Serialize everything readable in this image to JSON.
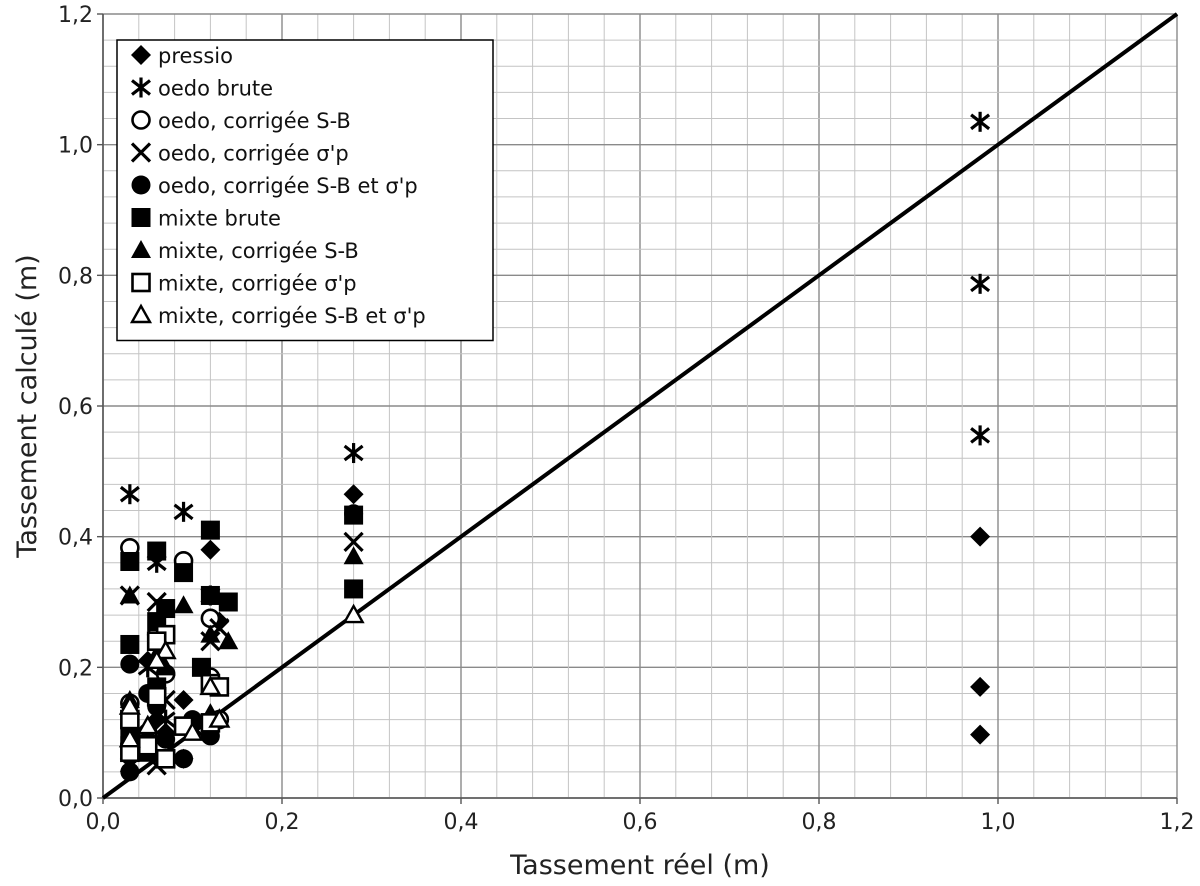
{
  "chart_data": {
    "type": "scatter",
    "xlabel": "Tassement réel  (m)",
    "ylabel": "Tassement calculé (m)",
    "xlim": [
      0,
      1.2
    ],
    "ylim": [
      0,
      1.2
    ],
    "x_ticks": [
      "0,0",
      "0,2",
      "0,4",
      "0,6",
      "0,8",
      "1,0",
      "1,2"
    ],
    "y_ticks": [
      "0,0",
      "0,2",
      "0,4",
      "0,6",
      "0,8",
      "1,0",
      "1,2"
    ],
    "grid": true,
    "minor_grid_step": 0.04,
    "major_grid_step": 0.2,
    "legend_position": "top-left",
    "reference_line": {
      "x": [
        0,
        1.2
      ],
      "y": [
        0,
        1.2
      ]
    },
    "series": [
      {
        "name": "pressio",
        "marker": "diamond",
        "points": [
          [
            0.98,
            0.4
          ],
          [
            0.98,
            0.17
          ],
          [
            0.98,
            0.097
          ],
          [
            0.28,
            0.465
          ],
          [
            0.12,
            0.38
          ],
          [
            0.09,
            0.15
          ],
          [
            0.13,
            0.27
          ],
          [
            0.06,
            0.12
          ],
          [
            0.04,
            0.08
          ],
          [
            0.05,
            0.21
          ],
          [
            0.03,
            0.06
          ],
          [
            0.09,
            0.06
          ],
          [
            0.07,
            0.1
          ],
          [
            0.12,
            0.11
          ]
        ]
      },
      {
        "name": "oedo brute",
        "marker": "asterisk",
        "points": [
          [
            0.98,
            1.035
          ],
          [
            0.98,
            0.787
          ],
          [
            0.98,
            0.555
          ],
          [
            0.28,
            0.528
          ],
          [
            0.03,
            0.465
          ],
          [
            0.09,
            0.438
          ],
          [
            0.06,
            0.36
          ],
          [
            0.12,
            0.31
          ],
          [
            0.05,
            0.2
          ],
          [
            0.03,
            0.05
          ],
          [
            0.07,
            0.12
          ]
        ]
      },
      {
        "name": "oedo, corrigée S-B",
        "marker": "circle-open",
        "points": [
          [
            0.03,
            0.383
          ],
          [
            0.09,
            0.363
          ],
          [
            0.12,
            0.275
          ],
          [
            0.06,
            0.25
          ],
          [
            0.03,
            0.145
          ],
          [
            0.12,
            0.185
          ],
          [
            0.07,
            0.19
          ],
          [
            0.05,
            0.1
          ],
          [
            0.13,
            0.12
          ]
        ]
      },
      {
        "name": "oedo, corrigée σ'p",
        "marker": "x",
        "points": [
          [
            0.28,
            0.392
          ],
          [
            0.03,
            0.31
          ],
          [
            0.06,
            0.3
          ],
          [
            0.12,
            0.24
          ],
          [
            0.13,
            0.26
          ],
          [
            0.07,
            0.15
          ],
          [
            0.04,
            0.08
          ],
          [
            0.1,
            0.11
          ],
          [
            0.06,
            0.05
          ]
        ]
      },
      {
        "name": "oedo, corrigée S-B et σ'p",
        "marker": "circle",
        "points": [
          [
            0.28,
            0.435
          ],
          [
            0.03,
            0.205
          ],
          [
            0.05,
            0.16
          ],
          [
            0.06,
            0.14
          ],
          [
            0.12,
            0.095
          ],
          [
            0.09,
            0.06
          ],
          [
            0.03,
            0.04
          ],
          [
            0.04,
            0.07
          ],
          [
            0.07,
            0.09
          ],
          [
            0.1,
            0.12
          ]
        ]
      },
      {
        "name": "mixte brute",
        "marker": "square",
        "points": [
          [
            0.12,
            0.41
          ],
          [
            0.06,
            0.378
          ],
          [
            0.03,
            0.362
          ],
          [
            0.09,
            0.345
          ],
          [
            0.28,
            0.433
          ],
          [
            0.28,
            0.32
          ],
          [
            0.12,
            0.31
          ],
          [
            0.14,
            0.3
          ],
          [
            0.07,
            0.29
          ],
          [
            0.06,
            0.27
          ],
          [
            0.03,
            0.235
          ],
          [
            0.11,
            0.2
          ],
          [
            0.06,
            0.17
          ],
          [
            0.03,
            0.1
          ],
          [
            0.05,
            0.07
          ],
          [
            0.12,
            0.115
          ],
          [
            0.03,
            0.08
          ],
          [
            0.07,
            0.06
          ]
        ]
      },
      {
        "name": "mixte, corrigée S-B",
        "marker": "triangle",
        "points": [
          [
            0.28,
            0.37
          ],
          [
            0.03,
            0.31
          ],
          [
            0.09,
            0.295
          ],
          [
            0.14,
            0.24
          ],
          [
            0.12,
            0.25
          ],
          [
            0.06,
            0.22
          ],
          [
            0.03,
            0.15
          ],
          [
            0.07,
            0.2
          ],
          [
            0.05,
            0.1
          ],
          [
            0.12,
            0.13
          ]
        ]
      },
      {
        "name": "mixte, corrigée σ'p",
        "marker": "square-open",
        "points": [
          [
            0.07,
            0.25
          ],
          [
            0.06,
            0.24
          ],
          [
            0.12,
            0.175
          ],
          [
            0.06,
            0.155
          ],
          [
            0.13,
            0.17
          ],
          [
            0.03,
            0.12
          ],
          [
            0.09,
            0.11
          ],
          [
            0.12,
            0.115
          ],
          [
            0.05,
            0.08
          ],
          [
            0.03,
            0.07
          ],
          [
            0.07,
            0.06
          ]
        ]
      },
      {
        "name": "mixte, corrigée S-B et σ'p",
        "marker": "triangle-open",
        "points": [
          [
            0.28,
            0.28
          ],
          [
            0.07,
            0.225
          ],
          [
            0.06,
            0.21
          ],
          [
            0.12,
            0.17
          ],
          [
            0.03,
            0.14
          ],
          [
            0.05,
            0.11
          ],
          [
            0.1,
            0.1
          ],
          [
            0.13,
            0.12
          ],
          [
            0.03,
            0.09
          ]
        ]
      }
    ]
  }
}
